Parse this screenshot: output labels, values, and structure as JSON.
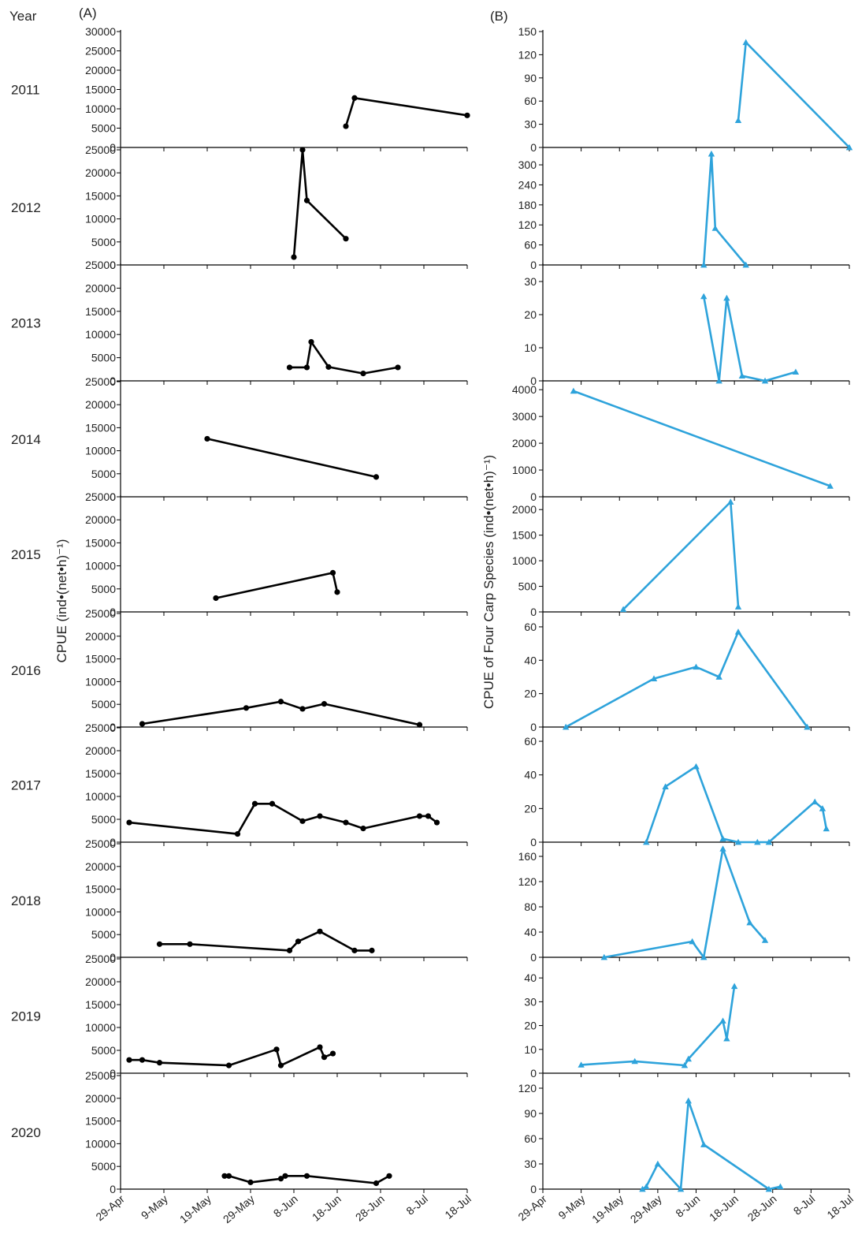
{
  "figure": {
    "year_header": "Year",
    "panel_a_label": "(A)",
    "panel_b_label": "(B)",
    "ylabel_a": "CPUE (ind•(net•h)⁻¹)",
    "ylabel_b": "CPUE of Four Carp Species (ind•(net•h)⁻¹)",
    "x_ticks": [
      "29-Apr",
      "9-May",
      "19-May",
      "29-May",
      "8-Jun",
      "18-Jun",
      "28-Jun",
      "8-Jul",
      "18-Jul"
    ],
    "colors": {
      "panel_a": "#000000",
      "panel_b": "#2ea3db"
    }
  },
  "chart_data": [
    {
      "panel": "A",
      "type": "line",
      "x_unit": "date",
      "xlim": [
        "2000-04-29",
        "2000-07-18"
      ],
      "marker": "circle",
      "color": "#000000",
      "years": [
        {
          "year": "2011",
          "ylim": [
            0,
            30000
          ],
          "yticks": [
            0,
            5000,
            10000,
            15000,
            20000,
            25000,
            30000
          ],
          "points": [
            [
              "2000-06-20",
              5500
            ],
            [
              "2000-06-22",
              12800
            ],
            [
              "2000-07-18",
              8300
            ]
          ]
        },
        {
          "year": "2012",
          "ylim": [
            0,
            25000
          ],
          "yticks": [
            0,
            5000,
            10000,
            15000,
            20000,
            25000
          ],
          "points": [
            [
              "2000-06-08",
              1700
            ],
            [
              "2000-06-10",
              25000
            ],
            [
              "2000-06-11",
              14000
            ],
            [
              "2000-06-20",
              5700
            ]
          ]
        },
        {
          "year": "2013",
          "ylim": [
            0,
            25000
          ],
          "yticks": [
            0,
            5000,
            10000,
            15000,
            20000,
            25000
          ],
          "points": [
            [
              "2000-06-07",
              2900
            ],
            [
              "2000-06-11",
              2900
            ],
            [
              "2000-06-12",
              8400
            ],
            [
              "2000-06-16",
              3000
            ],
            [
              "2000-06-24",
              1600
            ],
            [
              "2000-07-02",
              2900
            ]
          ]
        },
        {
          "year": "2014",
          "ylim": [
            0,
            25000
          ],
          "yticks": [
            0,
            5000,
            10000,
            15000,
            20000,
            25000
          ],
          "points": [
            [
              "2000-05-19",
              12600
            ],
            [
              "2000-06-27",
              4300
            ]
          ]
        },
        {
          "year": "2015",
          "ylim": [
            0,
            25000
          ],
          "yticks": [
            0,
            5000,
            10000,
            15000,
            20000,
            25000
          ],
          "points": [
            [
              "2000-05-21",
              3000
            ],
            [
              "2000-06-17",
              8500
            ],
            [
              "2000-06-18",
              4300
            ]
          ]
        },
        {
          "year": "2016",
          "ylim": [
            0,
            25000
          ],
          "yticks": [
            0,
            5000,
            10000,
            15000,
            20000,
            25000
          ],
          "points": [
            [
              "2000-05-04",
              700
            ],
            [
              "2000-05-28",
              4200
            ],
            [
              "2000-06-05",
              5600
            ],
            [
              "2000-06-10",
              4000
            ],
            [
              "2000-06-15",
              5100
            ],
            [
              "2000-07-07",
              500
            ]
          ]
        },
        {
          "year": "2017",
          "ylim": [
            0,
            25000
          ],
          "yticks": [
            0,
            5000,
            10000,
            15000,
            20000,
            25000
          ],
          "points": [
            [
              "2000-05-01",
              4300
            ],
            [
              "2000-05-26",
              1800
            ],
            [
              "2000-05-30",
              8400
            ],
            [
              "2000-06-03",
              8400
            ],
            [
              "2000-06-10",
              4600
            ],
            [
              "2000-06-14",
              5700
            ],
            [
              "2000-06-20",
              4300
            ],
            [
              "2000-06-24",
              3000
            ],
            [
              "2000-07-07",
              5700
            ],
            [
              "2000-07-09",
              5700
            ],
            [
              "2000-07-11",
              4300
            ]
          ]
        },
        {
          "year": "2018",
          "ylim": [
            0,
            25000
          ],
          "yticks": [
            0,
            5000,
            10000,
            15000,
            20000,
            25000
          ],
          "points": [
            [
              "2000-05-08",
              2900
            ],
            [
              "2000-05-15",
              2900
            ],
            [
              "2000-06-07",
              1500
            ],
            [
              "2000-06-09",
              3500
            ],
            [
              "2000-06-14",
              5700
            ],
            [
              "2000-06-22",
              1500
            ],
            [
              "2000-06-26",
              1500
            ]
          ]
        },
        {
          "year": "2019",
          "ylim": [
            0,
            25000
          ],
          "yticks": [
            0,
            5000,
            10000,
            15000,
            20000,
            25000
          ],
          "points": [
            [
              "2000-05-01",
              2900
            ],
            [
              "2000-05-04",
              2900
            ],
            [
              "2000-05-08",
              2300
            ],
            [
              "2000-05-24",
              1700
            ],
            [
              "2000-06-04",
              5200
            ],
            [
              "2000-06-05",
              1700
            ],
            [
              "2000-06-14",
              5700
            ],
            [
              "2000-06-15",
              3500
            ],
            [
              "2000-06-17",
              4300
            ]
          ]
        },
        {
          "year": "2020",
          "ylim": [
            0,
            25000
          ],
          "yticks": [
            0,
            5000,
            10000,
            15000,
            20000,
            25000
          ],
          "points": [
            [
              "2000-05-23",
              2900
            ],
            [
              "2000-05-24",
              2900
            ],
            [
              "2000-05-29",
              1500
            ],
            [
              "2000-06-05",
              2300
            ],
            [
              "2000-06-06",
              2900
            ],
            [
              "2000-06-11",
              2900
            ],
            [
              "2000-06-27",
              1300
            ],
            [
              "2000-06-30",
              2900
            ]
          ]
        }
      ]
    },
    {
      "panel": "B",
      "type": "line",
      "x_unit": "date",
      "xlim": [
        "2000-04-29",
        "2000-07-18"
      ],
      "marker": "triangle",
      "color": "#2ea3db",
      "years": [
        {
          "year": "2011",
          "ylim": [
            0,
            150
          ],
          "yticks": [
            0,
            30,
            60,
            90,
            120,
            150
          ],
          "points": [
            [
              "2000-06-19",
              35
            ],
            [
              "2000-06-21",
              136
            ],
            [
              "2000-07-18",
              0
            ]
          ]
        },
        {
          "year": "2012",
          "ylim": [
            0,
            345
          ],
          "yticks": [
            0,
            60,
            120,
            180,
            240,
            300
          ],
          "points": [
            [
              "2000-06-10",
              0
            ],
            [
              "2000-06-12",
              333
            ],
            [
              "2000-06-13",
              110
            ],
            [
              "2000-06-21",
              0
            ]
          ]
        },
        {
          "year": "2013",
          "ylim": [
            0,
            35
          ],
          "yticks": [
            0,
            10,
            20,
            30
          ],
          "points": [
            [
              "2000-06-10",
              25.5
            ],
            [
              "2000-06-14",
              0
            ],
            [
              "2000-06-16",
              25
            ],
            [
              "2000-06-20",
              1.5
            ],
            [
              "2000-06-26",
              0
            ],
            [
              "2000-07-04",
              2.7
            ]
          ]
        },
        {
          "year": "2014",
          "ylim": [
            0,
            4300
          ],
          "yticks": [
            0,
            1000,
            2000,
            3000,
            4000
          ],
          "points": [
            [
              "2000-05-07",
              3950
            ],
            [
              "2000-07-13",
              400
            ]
          ]
        },
        {
          "year": "2015",
          "ylim": [
            0,
            2250
          ],
          "yticks": [
            0,
            500,
            1000,
            1500,
            2000
          ],
          "points": [
            [
              "2000-05-20",
              50
            ],
            [
              "2000-06-17",
              2150
            ],
            [
              "2000-06-19",
              100
            ]
          ]
        },
        {
          "year": "2016",
          "ylim": [
            0,
            68
          ],
          "yticks": [
            0,
            20,
            40,
            60
          ],
          "points": [
            [
              "2000-05-05",
              0
            ],
            [
              "2000-05-28",
              29
            ],
            [
              "2000-06-08",
              36
            ],
            [
              "2000-06-14",
              30
            ],
            [
              "2000-06-19",
              57
            ],
            [
              "2000-07-07",
              0
            ]
          ]
        },
        {
          "year": "2017",
          "ylim": [
            0,
            68
          ],
          "yticks": [
            0,
            20,
            40,
            60
          ],
          "points": [
            [
              "2000-05-26",
              0
            ],
            [
              "2000-05-31",
              33
            ],
            [
              "2000-06-08",
              45
            ],
            [
              "2000-06-15",
              2
            ],
            [
              "2000-06-19",
              0
            ],
            [
              "2000-06-24",
              0
            ],
            [
              "2000-06-27",
              0
            ],
            [
              "2000-07-09",
              24
            ],
            [
              "2000-07-11",
              20
            ],
            [
              "2000-07-12",
              8
            ]
          ]
        },
        {
          "year": "2018",
          "ylim": [
            0,
            180
          ],
          "yticks": [
            0,
            40,
            80,
            120,
            160
          ],
          "points": [
            [
              "2000-05-15",
              0
            ],
            [
              "2000-06-07",
              25
            ],
            [
              "2000-06-10",
              0
            ],
            [
              "2000-06-15",
              172
            ],
            [
              "2000-06-22",
              55
            ],
            [
              "2000-06-26",
              27
            ]
          ]
        },
        {
          "year": "2019",
          "ylim": [
            0,
            48
          ],
          "yticks": [
            0,
            10,
            20,
            30,
            40
          ],
          "points": [
            [
              "2000-05-09",
              3.5
            ],
            [
              "2000-05-23",
              5
            ],
            [
              "2000-06-05",
              3.3
            ],
            [
              "2000-06-06",
              6
            ],
            [
              "2000-06-15",
              22
            ],
            [
              "2000-06-16",
              14.5
            ],
            [
              "2000-06-18",
              36.5
            ]
          ]
        },
        {
          "year": "2020",
          "ylim": [
            0,
            135
          ],
          "yticks": [
            0,
            30,
            60,
            90,
            120
          ],
          "points": [
            [
              "2000-05-25",
              0
            ],
            [
              "2000-05-26",
              3
            ],
            [
              "2000-05-29",
              30
            ],
            [
              "2000-06-04",
              0
            ],
            [
              "2000-06-06",
              105
            ],
            [
              "2000-06-10",
              53
            ],
            [
              "2000-06-27",
              0
            ],
            [
              "2000-06-30",
              3
            ]
          ]
        }
      ]
    }
  ]
}
